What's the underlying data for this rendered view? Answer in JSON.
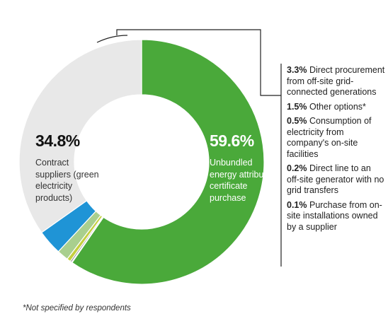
{
  "chart_data": {
    "type": "pie",
    "donut": true,
    "slices": [
      {
        "label": "Unbundled energy attribute certificate purchase",
        "value": 59.6,
        "pct_text": "59.6%",
        "color": "#4aa93a"
      },
      {
        "label": "Contract suppliers (green electricity products)",
        "value": 34.8,
        "pct_text": "34.8%",
        "color": "#e8e8e8"
      },
      {
        "label": "Direct procurement from off-site grid-connected generations",
        "value": 3.3,
        "pct_text": "3.3%",
        "color": "#1f94d6"
      },
      {
        "label": "Other options*",
        "value": 1.5,
        "pct_text": "1.5%",
        "color": "#a9cf8e"
      },
      {
        "label": "Consumption of electricity from company's on-site facilities",
        "value": 0.5,
        "pct_text": "0.5%",
        "color": "#c4cf3e"
      },
      {
        "label": "Direct line to an off-site generator with no grid transfers",
        "value": 0.2,
        "pct_text": "0.2%",
        "color": "#7f7f7f"
      },
      {
        "label": "Purchase from on-site installations owned by a supplier",
        "value": 0.1,
        "pct_text": "0.1%",
        "color": "#9ec9ea"
      }
    ]
  },
  "labels": {
    "green_pct": "59.6%",
    "green_text": "Unbundled energy attribute certificate purchase",
    "grey_pct": "34.8%",
    "grey_text": "Contract suppliers (green electricity products)"
  },
  "legend": [
    {
      "pct": "3.3%",
      "text": "Direct procurement from off-site grid-connected generations"
    },
    {
      "pct": "1.5%",
      "text": "Other options*"
    },
    {
      "pct": "0.5%",
      "text": "Consumption of electricity from company's on-site facilities"
    },
    {
      "pct": "0.2%",
      "text": "Direct line to an off-site generator with no grid transfers"
    },
    {
      "pct": "0.1%",
      "text": "Purchase from on-site installations owned by a supplier"
    }
  ],
  "footnote": "*Not specified by respondents"
}
